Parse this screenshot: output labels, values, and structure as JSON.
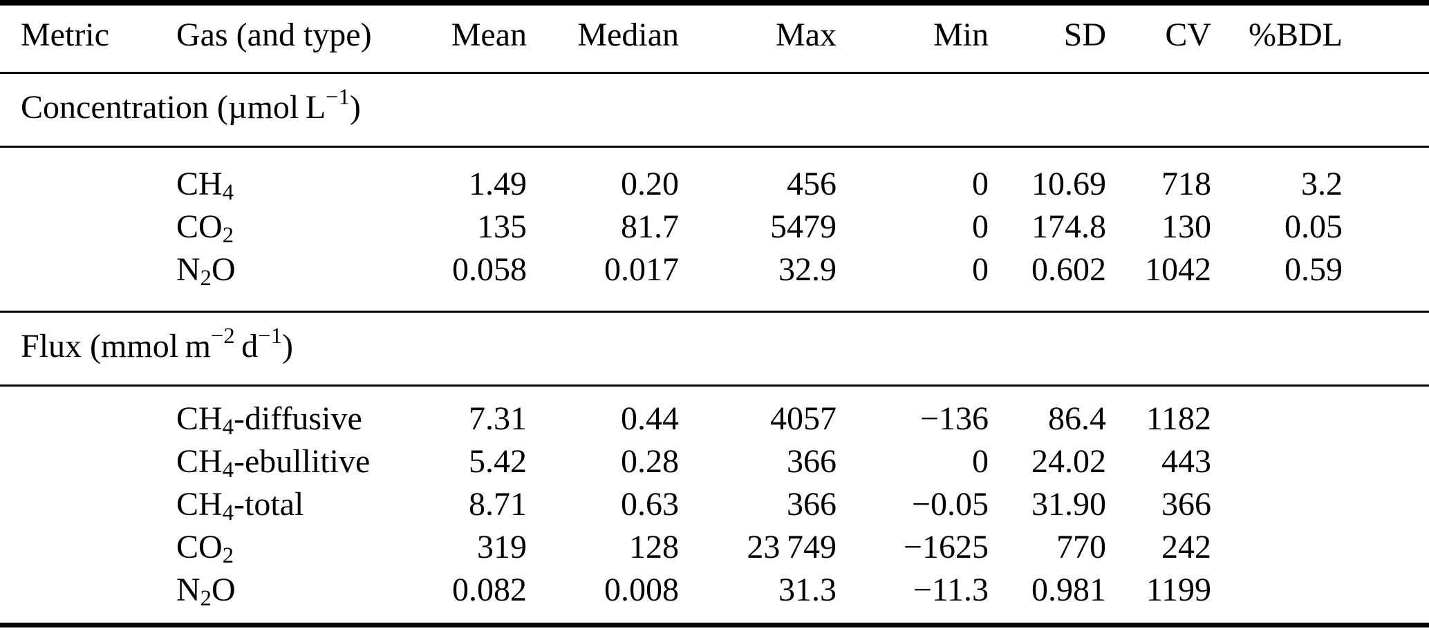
{
  "colors": {
    "text": "#000000",
    "background": "#ffffff",
    "rule": "#000000"
  },
  "table": {
    "columns": {
      "metric": "Metric",
      "gas": "Gas (and type)",
      "mean": "Mean",
      "median": "Median",
      "max": "Max",
      "min": "Min",
      "sd": "SD",
      "cv": "CV",
      "bdl": "%BDL"
    },
    "sections": [
      {
        "title": {
          "pre": "Concentration (µmol L",
          "sup1": "−1",
          "mid": ")",
          "sup2": "",
          "post": ""
        },
        "rows": [
          {
            "gas": {
              "base": "CH",
              "sub": "4",
              "suffix": ""
            },
            "mean": "1.49",
            "median": "0.20",
            "max": "456",
            "min": "0",
            "sd": "10.69",
            "cv": "718",
            "bdl": "3.2"
          },
          {
            "gas": {
              "base": "CO",
              "sub": "2",
              "suffix": ""
            },
            "mean": "135",
            "median": "81.7",
            "max": "5479",
            "min": "0",
            "sd": "174.8",
            "cv": "130",
            "bdl": "0.05"
          },
          {
            "gas": {
              "base": "N",
              "sub": "2",
              "suffix": "O"
            },
            "mean": "0.058",
            "median": "0.017",
            "max": "32.9",
            "min": "0",
            "sd": "0.602",
            "cv": "1042",
            "bdl": "0.59"
          }
        ]
      },
      {
        "title": {
          "pre": "Flux (mmol m",
          "sup1": "−2",
          "mid": " d",
          "sup2": "−1",
          "post": ")"
        },
        "rows": [
          {
            "gas": {
              "base": "CH",
              "sub": "4",
              "suffix": "-diffusive"
            },
            "mean": "7.31",
            "median": "0.44",
            "max": "4057",
            "min": "−136",
            "sd": "86.4",
            "cv": "1182",
            "bdl": ""
          },
          {
            "gas": {
              "base": "CH",
              "sub": "4",
              "suffix": "-ebullitive"
            },
            "mean": "5.42",
            "median": "0.28",
            "max": "366",
            "min": "0",
            "sd": "24.02",
            "cv": "443",
            "bdl": ""
          },
          {
            "gas": {
              "base": "CH",
              "sub": "4",
              "suffix": "-total"
            },
            "mean": "8.71",
            "median": "0.63",
            "max": "366",
            "min": "−0.05",
            "sd": "31.90",
            "cv": "366",
            "bdl": ""
          },
          {
            "gas": {
              "base": "CO",
              "sub": "2",
              "suffix": ""
            },
            "mean": "319",
            "median": "128",
            "max": "23 749",
            "min": "−1625",
            "sd": "770",
            "cv": "242",
            "bdl": ""
          },
          {
            "gas": {
              "base": "N",
              "sub": "2",
              "suffix": "O"
            },
            "mean": "0.082",
            "median": "0.008",
            "max": "31.3",
            "min": "−11.3",
            "sd": "0.981",
            "cv": "1199",
            "bdl": ""
          }
        ]
      }
    ]
  }
}
